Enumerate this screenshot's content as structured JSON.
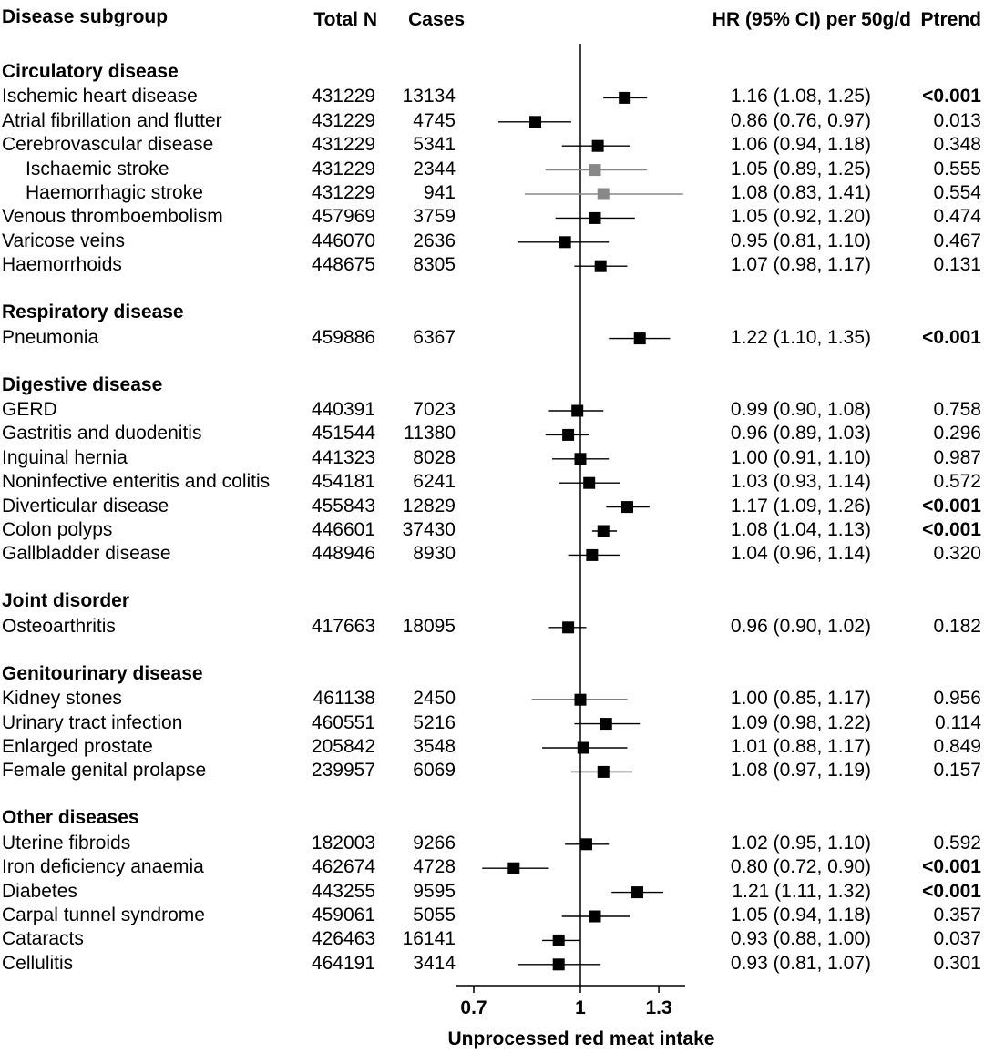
{
  "headers": {
    "subgroup": "Disease subgroup",
    "total_n": "Total N",
    "cases": "Cases",
    "hr": "HR (95% CI) per 50g/d",
    "ptrend": "Ptrend"
  },
  "groups": [
    {
      "name": "Circulatory disease",
      "rows": [
        {
          "label": "Ischemic heart disease",
          "n": "431229",
          "cases": "13134",
          "hr": 1.16,
          "lo": 1.08,
          "hi": 1.25,
          "hr_text": "1.16 (1.08, 1.25)",
          "p": "<0.001",
          "bold": true,
          "sub": false
        },
        {
          "label": "Atrial fibrillation and flutter",
          "n": "431229",
          "cases": "4745",
          "hr": 0.86,
          "lo": 0.76,
          "hi": 0.97,
          "hr_text": "0.86 (0.76, 0.97)",
          "p": "0.013",
          "bold": false,
          "sub": false
        },
        {
          "label": "Cerebrovascular disease",
          "n": "431229",
          "cases": "5341",
          "hr": 1.06,
          "lo": 0.94,
          "hi": 1.18,
          "hr_text": "1.06 (0.94, 1.18)",
          "p": "0.348",
          "bold": false,
          "sub": false
        },
        {
          "label": "Ischaemic stroke",
          "n": "431229",
          "cases": "2344",
          "hr": 1.05,
          "lo": 0.89,
          "hi": 1.25,
          "hr_text": "1.05 (0.89, 1.25)",
          "p": "0.555",
          "bold": false,
          "sub": true
        },
        {
          "label": "Haemorrhagic stroke",
          "n": "431229",
          "cases": "941",
          "hr": 1.08,
          "lo": 0.83,
          "hi": 1.41,
          "hr_text": "1.08 (0.83, 1.41)",
          "p": "0.554",
          "bold": false,
          "sub": true
        },
        {
          "label": "Venous thromboembolism",
          "n": "457969",
          "cases": "3759",
          "hr": 1.05,
          "lo": 0.92,
          "hi": 1.2,
          "hr_text": "1.05 (0.92, 1.20)",
          "p": "0.474",
          "bold": false,
          "sub": false
        },
        {
          "label": "Varicose veins",
          "n": "446070",
          "cases": "2636",
          "hr": 0.95,
          "lo": 0.81,
          "hi": 1.1,
          "hr_text": "0.95 (0.81, 1.10)",
          "p": "0.467",
          "bold": false,
          "sub": false
        },
        {
          "label": "Haemorrhoids",
          "n": "448675",
          "cases": "8305",
          "hr": 1.07,
          "lo": 0.98,
          "hi": 1.17,
          "hr_text": "1.07 (0.98, 1.17)",
          "p": "0.131",
          "bold": false,
          "sub": false
        }
      ]
    },
    {
      "name": "Respiratory disease",
      "rows": [
        {
          "label": "Pneumonia",
          "n": "459886",
          "cases": "6367",
          "hr": 1.22,
          "lo": 1.1,
          "hi": 1.35,
          "hr_text": "1.22 (1.10, 1.35)",
          "p": "<0.001",
          "bold": true,
          "sub": false
        }
      ]
    },
    {
      "name": "Digestive disease",
      "rows": [
        {
          "label": "GERD",
          "n": "440391",
          "cases": "7023",
          "hr": 0.99,
          "lo": 0.9,
          "hi": 1.08,
          "hr_text": "0.99 (0.90, 1.08)",
          "p": "0.758",
          "bold": false,
          "sub": false
        },
        {
          "label": "Gastritis and duodenitis",
          "n": "451544",
          "cases": "11380",
          "hr": 0.96,
          "lo": 0.89,
          "hi": 1.03,
          "hr_text": "0.96 (0.89, 1.03)",
          "p": "0.296",
          "bold": false,
          "sub": false
        },
        {
          "label": "Inguinal hernia",
          "n": "441323",
          "cases": "8028",
          "hr": 1.0,
          "lo": 0.91,
          "hi": 1.1,
          "hr_text": "1.00 (0.91, 1.10)",
          "p": "0.987",
          "bold": false,
          "sub": false
        },
        {
          "label": "Noninfective enteritis and colitis",
          "n": "454181",
          "cases": "6241",
          "hr": 1.03,
          "lo": 0.93,
          "hi": 1.14,
          "hr_text": "1.03 (0.93, 1.14)",
          "p": "0.572",
          "bold": false,
          "sub": false
        },
        {
          "label": "Diverticular disease",
          "n": "455843",
          "cases": "12829",
          "hr": 1.17,
          "lo": 1.09,
          "hi": 1.26,
          "hr_text": "1.17 (1.09, 1.26)",
          "p": "<0.001",
          "bold": true,
          "sub": false
        },
        {
          "label": "Colon polyps",
          "n": "446601",
          "cases": "37430",
          "hr": 1.08,
          "lo": 1.04,
          "hi": 1.13,
          "hr_text": "1.08 (1.04, 1.13)",
          "p": "<0.001",
          "bold": true,
          "sub": false
        },
        {
          "label": "Gallbladder disease",
          "n": "448946",
          "cases": "8930",
          "hr": 1.04,
          "lo": 0.96,
          "hi": 1.14,
          "hr_text": "1.04 (0.96, 1.14)",
          "p": "0.320",
          "bold": false,
          "sub": false
        }
      ]
    },
    {
      "name": "Joint disorder",
      "rows": [
        {
          "label": "Osteoarthritis",
          "n": "417663",
          "cases": "18095",
          "hr": 0.96,
          "lo": 0.9,
          "hi": 1.02,
          "hr_text": "0.96 (0.90, 1.02)",
          "p": "0.182",
          "bold": false,
          "sub": false
        }
      ]
    },
    {
      "name": "Genitourinary disease",
      "rows": [
        {
          "label": "Kidney stones",
          "n": "461138",
          "cases": "2450",
          "hr": 1.0,
          "lo": 0.85,
          "hi": 1.17,
          "hr_text": "1.00 (0.85, 1.17)",
          "p": "0.956",
          "bold": false,
          "sub": false
        },
        {
          "label": "Urinary tract infection",
          "n": "460551",
          "cases": "5216",
          "hr": 1.09,
          "lo": 0.98,
          "hi": 1.22,
          "hr_text": "1.09 (0.98, 1.22)",
          "p": "0.114",
          "bold": false,
          "sub": false
        },
        {
          "label": "Enlarged prostate",
          "n": "205842",
          "cases": "3548",
          "hr": 1.01,
          "lo": 0.88,
          "hi": 1.17,
          "hr_text": "1.01 (0.88, 1.17)",
          "p": "0.849",
          "bold": false,
          "sub": false
        },
        {
          "label": "Female genital prolapse",
          "n": "239957",
          "cases": "6069",
          "hr": 1.08,
          "lo": 0.97,
          "hi": 1.19,
          "hr_text": "1.08 (0.97, 1.19)",
          "p": "0.157",
          "bold": false,
          "sub": false
        }
      ]
    },
    {
      "name": "Other diseases",
      "rows": [
        {
          "label": "Uterine fibroids",
          "n": "182003",
          "cases": "9266",
          "hr": 1.02,
          "lo": 0.95,
          "hi": 1.1,
          "hr_text": "1.02 (0.95, 1.10)",
          "p": "0.592",
          "bold": false,
          "sub": false
        },
        {
          "label": "Iron deficiency anaemia",
          "n": "462674",
          "cases": "4728",
          "hr": 0.8,
          "lo": 0.72,
          "hi": 0.9,
          "hr_text": "0.80 (0.72, 0.90)",
          "p": "<0.001",
          "bold": true,
          "sub": false
        },
        {
          "label": "Diabetes",
          "n": "443255",
          "cases": "9595",
          "hr": 1.21,
          "lo": 1.11,
          "hi": 1.32,
          "hr_text": "1.21 (1.11, 1.32)",
          "p": "<0.001",
          "bold": true,
          "sub": false
        },
        {
          "label": "Carpal tunnel syndrome",
          "n": "459061",
          "cases": "5055",
          "hr": 1.05,
          "lo": 0.94,
          "hi": 1.18,
          "hr_text": "1.05 (0.94, 1.18)",
          "p": "0.357",
          "bold": false,
          "sub": false
        },
        {
          "label": "Cataracts",
          "n": "426463",
          "cases": "16141",
          "hr": 0.93,
          "lo": 0.88,
          "hi": 1.0,
          "hr_text": "0.93 (0.88, 1.00)",
          "p": "0.037",
          "bold": false,
          "sub": false
        },
        {
          "label": "Cellulitis",
          "n": "464191",
          "cases": "3414",
          "hr": 0.93,
          "lo": 0.81,
          "hi": 1.07,
          "hr_text": "0.93 (0.81, 1.07)",
          "p": "0.301",
          "bold": false,
          "sub": false
        }
      ]
    }
  ],
  "chart_data": {
    "type": "scatter",
    "title": "",
    "xlabel": "Unprocessed red meat intake",
    "ylabel": "",
    "xscale": "log",
    "xlim": [
      0.6,
      1.5
    ],
    "reference_line": 1,
    "ticks": [
      0.7,
      1,
      1.3
    ],
    "tick_labels": [
      "0.7",
      "1",
      "1.3"
    ],
    "marker": "square",
    "colors": {
      "main": "#000000",
      "subgroup": "#888888"
    }
  }
}
